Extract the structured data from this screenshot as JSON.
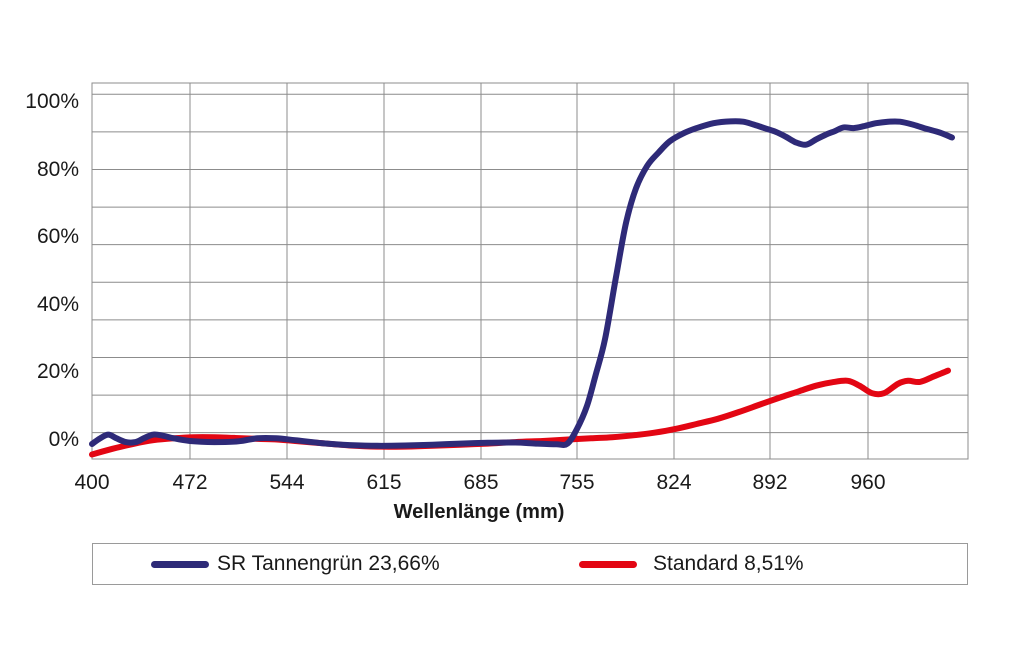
{
  "chart_data": {
    "type": "line",
    "title": "",
    "xlabel": "Wellenlänge (mm)",
    "ylabel": "",
    "x_tick_labels": [
      "400",
      "472",
      "544",
      "615",
      "685",
      "755",
      "824",
      "892",
      "960"
    ],
    "y_tick_labels": [
      "0%",
      "20%",
      "40%",
      "60%",
      "80%",
      "100%"
    ],
    "xlim": [
      400,
      1010
    ],
    "ylim": [
      -7,
      93
    ],
    "grid": true,
    "legend_position": "bottom",
    "series": [
      {
        "name": "SR Tannengrün 23,66%",
        "color": "#2e2a78",
        "x": [
          400,
          406,
          412,
          418,
          425,
          432,
          438,
          445,
          452,
          460,
          472,
          490,
          508,
          522,
          536,
          550,
          570,
          590,
          610,
          630,
          650,
          670,
          690,
          710,
          725,
          740,
          748,
          755,
          762,
          768,
          775,
          783,
          790,
          797,
          805,
          813,
          821,
          830,
          840,
          852,
          864,
          873,
          880,
          888,
          896,
          903,
          910,
          917,
          924,
          931,
          937,
          943,
          950,
          957,
          964,
          970,
          976,
          982,
          988,
          996,
          1002
        ],
        "y": [
          -3.0,
          -1.5,
          -0.5,
          -1.5,
          -2.5,
          -2.5,
          -1.5,
          -0.5,
          -0.8,
          -1.5,
          -2.2,
          -2.5,
          -2.3,
          -1.5,
          -1.5,
          -2.0,
          -2.8,
          -3.3,
          -3.5,
          -3.4,
          -3.2,
          -2.9,
          -2.7,
          -2.6,
          -2.9,
          -3.1,
          -2.9,
          1.0,
          7.0,
          15.0,
          25.0,
          42.0,
          56.0,
          65.0,
          71.0,
          74.5,
          77.5,
          79.5,
          81.0,
          82.3,
          82.8,
          82.7,
          82.0,
          81.0,
          80.0,
          78.7,
          77.2,
          76.6,
          78.0,
          79.3,
          80.2,
          81.2,
          81.0,
          81.5,
          82.3,
          82.7,
          82.7,
          82.0,
          81.0,
          79.8,
          78.5
        ]
      },
      {
        "name": "Standard 8,51%",
        "color": "#e30613",
        "x": [
          400,
          415,
          430,
          445,
          460,
          475,
          490,
          505,
          520,
          535,
          550,
          570,
          590,
          610,
          630,
          650,
          670,
          690,
          710,
          730,
          750,
          765,
          780,
          795,
          810,
          825,
          840,
          855,
          870,
          885,
          900,
          912,
          924,
          935,
          946,
          954,
          962,
          968,
          975,
          980,
          986,
          993,
          1000
        ],
        "y": [
          -5.8,
          -4.3,
          -3.0,
          -2.0,
          -1.5,
          -1.2,
          -1.2,
          -1.4,
          -1.6,
          -1.8,
          -2.2,
          -2.8,
          -3.4,
          -3.7,
          -3.7,
          -3.5,
          -3.2,
          -2.9,
          -2.5,
          -2.2,
          -1.8,
          -1.5,
          -1.2,
          -0.7,
          0.0,
          1.0,
          2.3,
          3.7,
          5.5,
          7.5,
          9.5,
          11.0,
          12.5,
          13.4,
          13.8,
          12.5,
          10.5,
          10.5,
          13.0,
          13.8,
          13.5,
          15.0,
          16.5
        ]
      }
    ]
  }
}
